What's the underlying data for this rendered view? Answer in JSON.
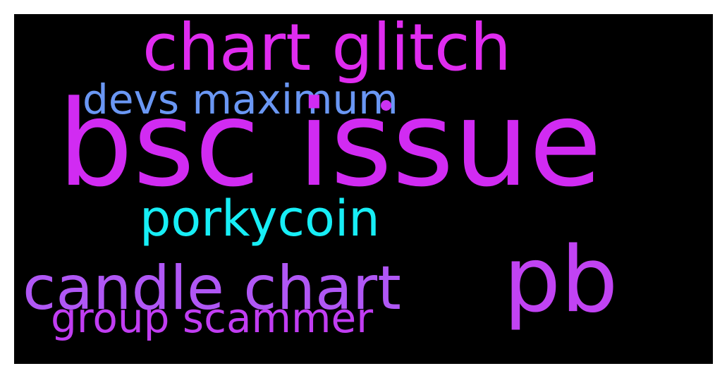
{
  "wordcloud": {
    "words": [
      {
        "text": "bsc issue",
        "color": "#d12bf2"
      },
      {
        "text": "chart glitch",
        "color": "#df2cef"
      },
      {
        "text": "pb",
        "color": "#c143f3"
      },
      {
        "text": "candle chart",
        "color": "#b057f5"
      },
      {
        "text": "porkycoin",
        "color": "#17eef6"
      },
      {
        "text": "group scammer",
        "color": "#c13df2"
      },
      {
        "text": "devs maximum",
        "color": "#6a97f4"
      },
      {
        "text": "",
        "color": "#cc33f2"
      }
    ]
  }
}
